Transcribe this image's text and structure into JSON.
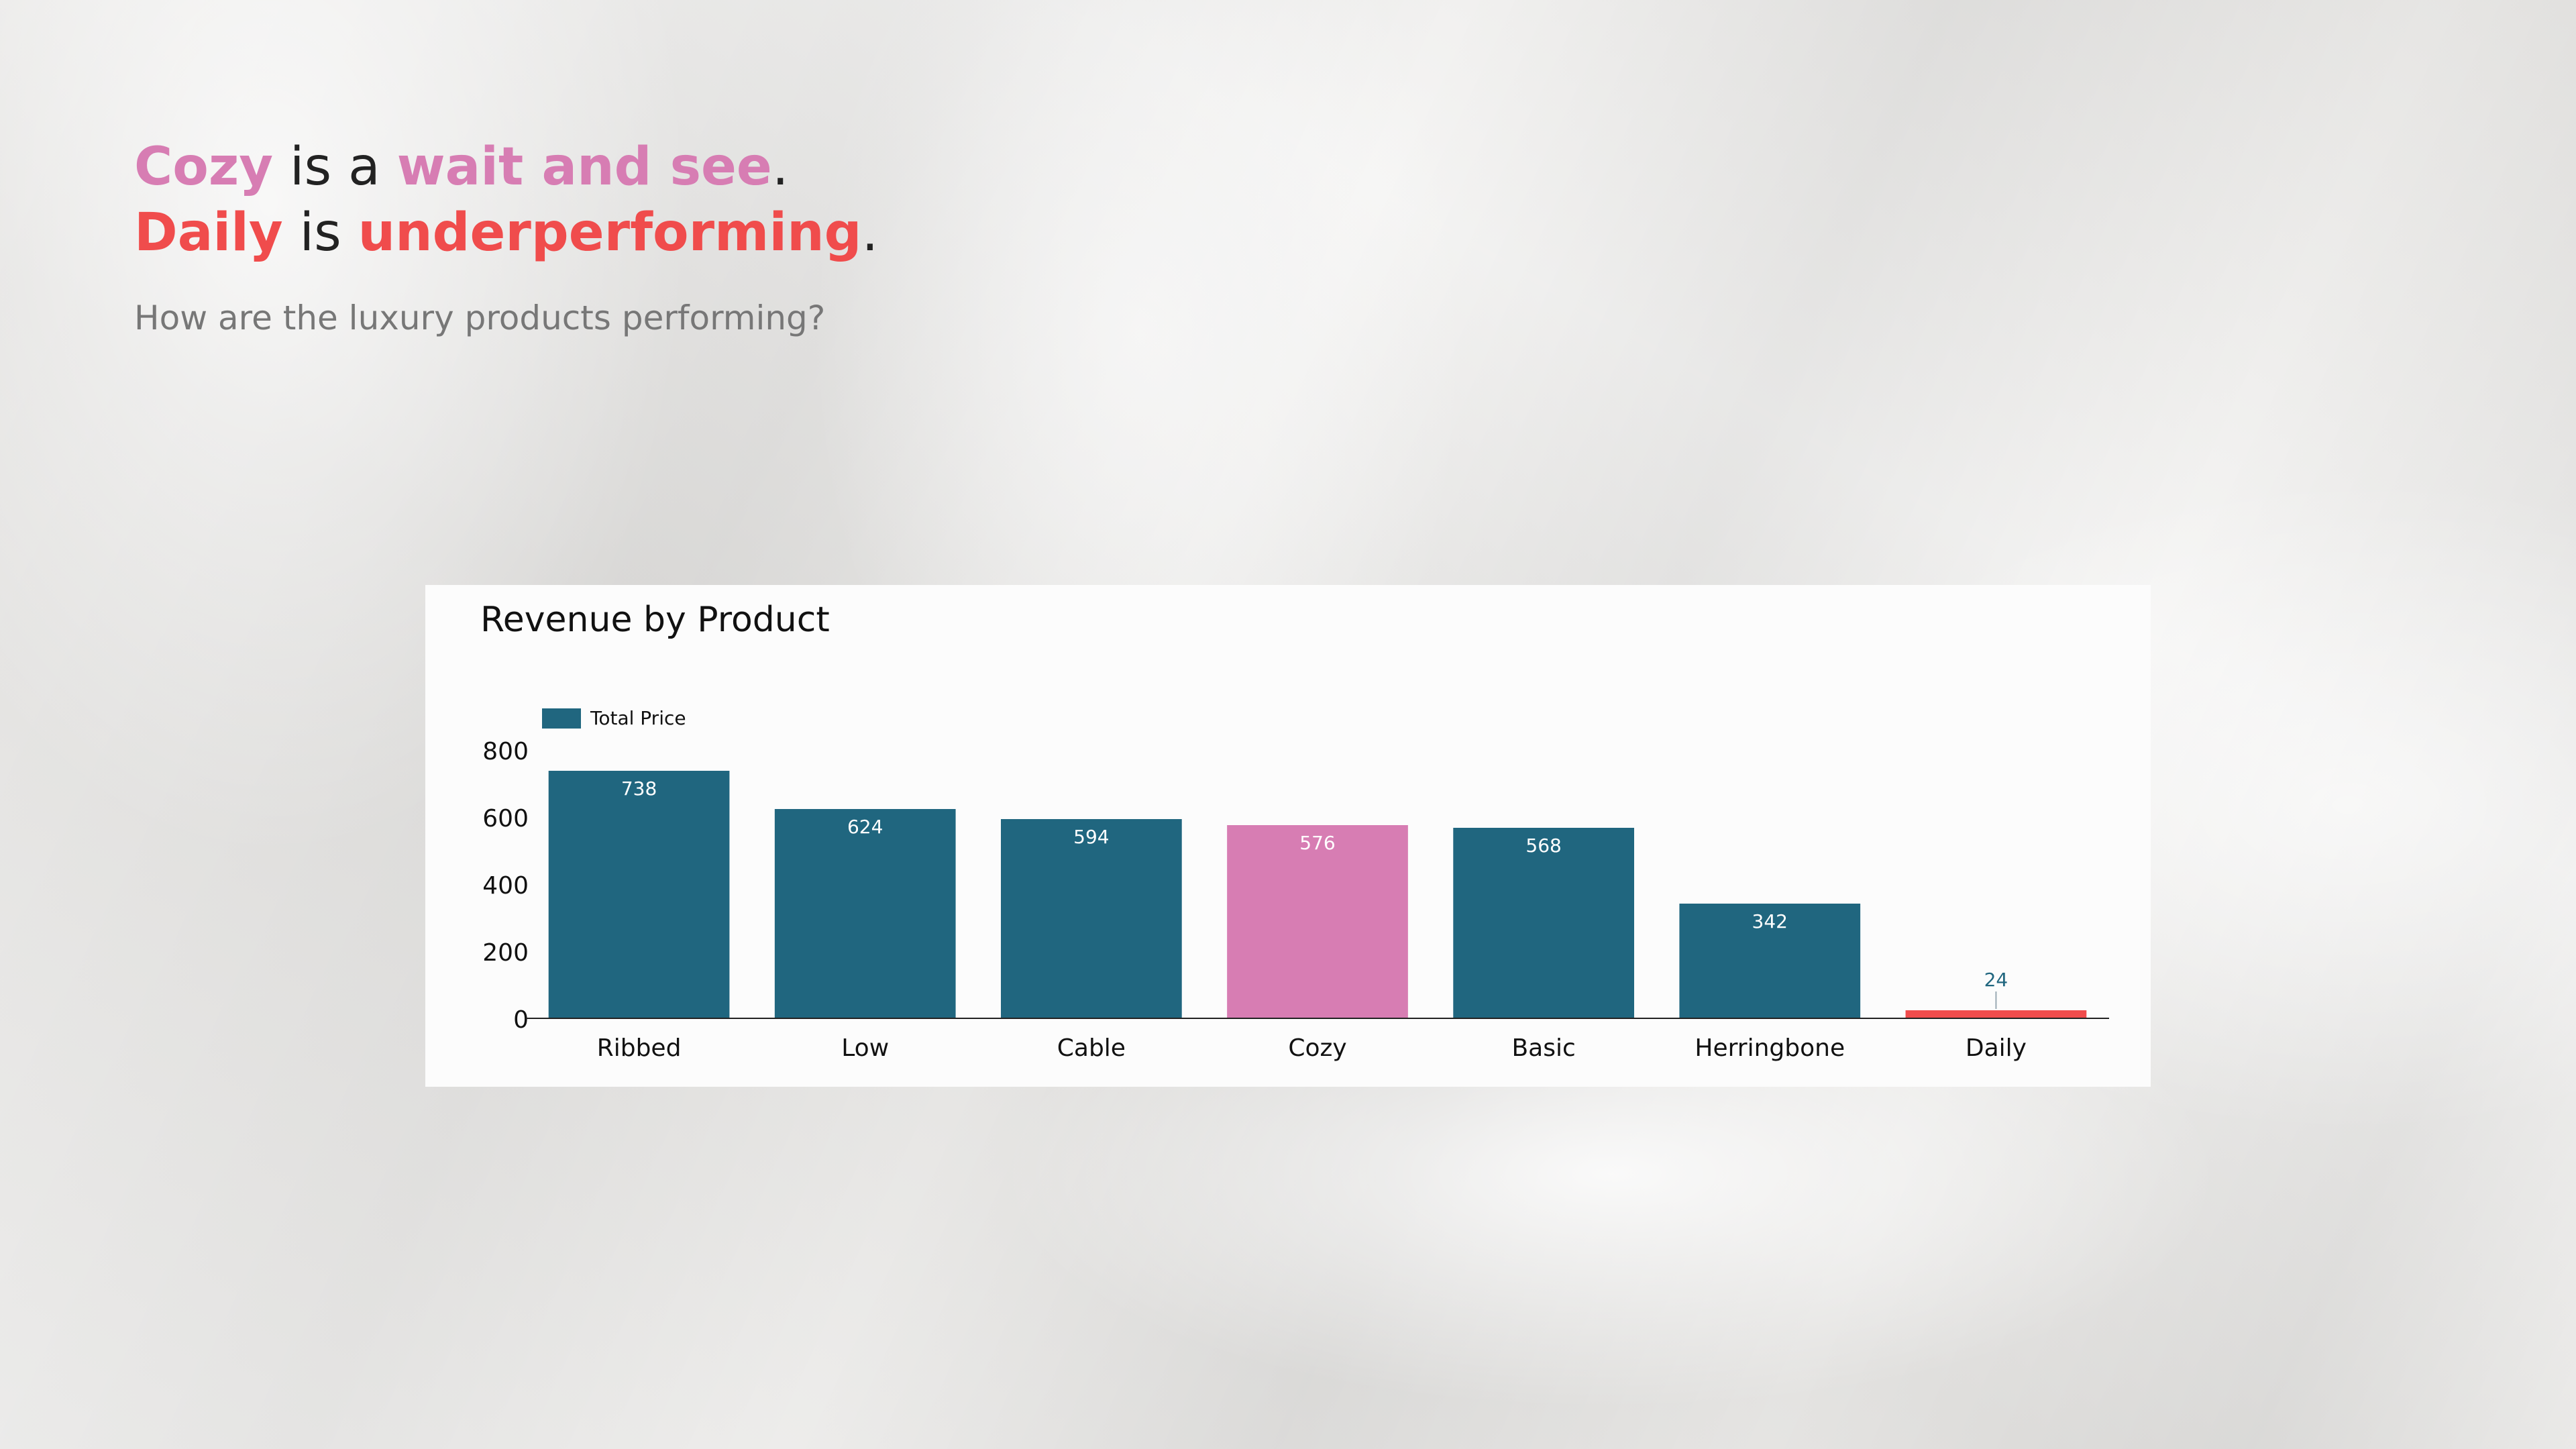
{
  "headline": {
    "line1": [
      {
        "text": "Cozy",
        "color": "#d77db3"
      },
      {
        "text": " is a ",
        "color": "#222222"
      },
      {
        "text": "wait and see",
        "color": "#d77db3"
      },
      {
        "text": ".",
        "color": "#222222"
      }
    ],
    "line2": [
      {
        "text": "Daily",
        "color": "#f04c4c"
      },
      {
        "text": " is ",
        "color": "#222222"
      },
      {
        "text": "underperforming",
        "color": "#f04c4c"
      },
      {
        "text": ".",
        "color": "#222222"
      }
    ]
  },
  "subtitle": "How are the luxury products performing?",
  "colors": {
    "default_bar": "#20667f",
    "highlight_watch": "#d77db3",
    "highlight_under": "#f04c4c",
    "under_label": "#20667f"
  },
  "chart_data": {
    "type": "bar",
    "title": "Revenue by Product",
    "xlabel": "",
    "ylabel": "",
    "ylim": [
      0,
      800
    ],
    "yticks": [
      0,
      200,
      400,
      600,
      800
    ],
    "grid": false,
    "legend": {
      "position": "top-left",
      "entries": [
        "Total Price"
      ]
    },
    "categories": [
      "Ribbed",
      "Low",
      "Cable",
      "Cozy",
      "Basic",
      "Herringbone",
      "Daily"
    ],
    "series": [
      {
        "name": "Total Price",
        "values": [
          738,
          624,
          594,
          576,
          568,
          342,
          24
        ],
        "colors": [
          "#20667f",
          "#20667f",
          "#20667f",
          "#d77db3",
          "#20667f",
          "#20667f",
          "#f04c4c"
        ]
      }
    ]
  }
}
